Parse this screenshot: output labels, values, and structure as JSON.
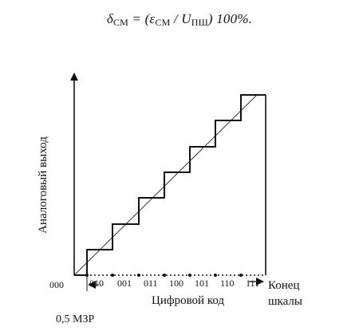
{
  "formula": {
    "lhs_symbol": "δ",
    "lhs_sub": "СМ",
    "eq_open": " = (",
    "eps_symbol": "ε",
    "eps_sub": "СМ",
    "div": " / ",
    "u_symbol": "U",
    "u_sub": "ПШ",
    "tail": ") 100%."
  },
  "diagram": {
    "ylabel": "Аналоговый выход",
    "xlabel": "Цифровой код",
    "x_start_code": "000",
    "codes": [
      "010",
      "001",
      "011",
      "100",
      "101",
      "110",
      "111"
    ],
    "end_label_line1": "Конец",
    "end_label_line2": "шкалы",
    "lsb_label": "0,5 МЗР"
  }
}
